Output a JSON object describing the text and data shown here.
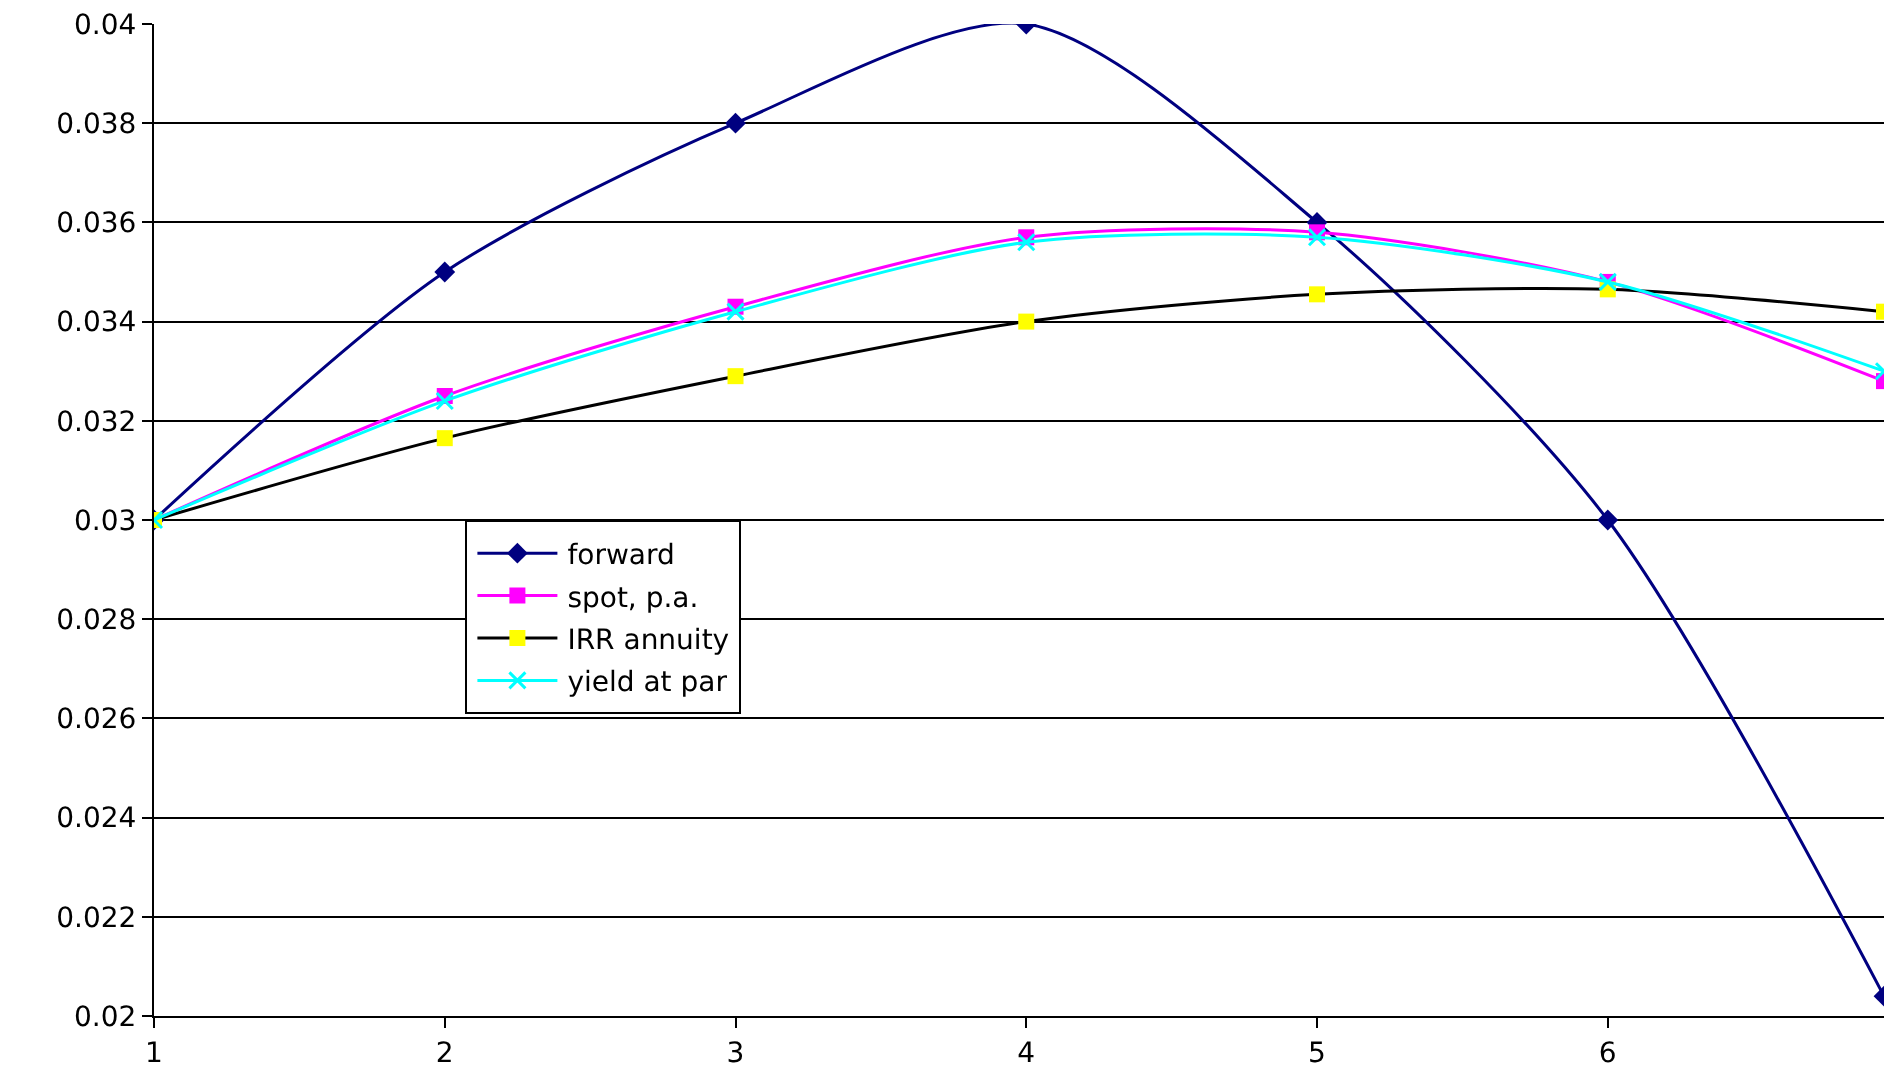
{
  "chart_data": {
    "type": "line",
    "x": [
      1,
      2,
      3,
      4,
      5,
      6,
      6.95
    ],
    "series": [
      {
        "name": "forward",
        "color": "#000080",
        "marker": "diamond",
        "values": [
          0.03,
          0.035,
          0.038,
          0.04,
          0.036,
          0.03,
          0.0204
        ]
      },
      {
        "name": "spot, p.a.",
        "color": "#ff00ff",
        "marker": "square",
        "values": [
          0.03,
          0.0325,
          0.0343,
          0.0357,
          0.0358,
          0.0348,
          0.0328
        ]
      },
      {
        "name": "IRR annuity",
        "color": "#000000",
        "colors": [
          "#ffff00",
          "#ffff00",
          "#ffff00",
          "#ffff00",
          "#ffff00",
          "#ffff00",
          "#ffff00"
        ],
        "marker": "square",
        "values": [
          0.03,
          0.03165,
          0.0329,
          0.034,
          0.03455,
          0.03465,
          0.0342
        ]
      },
      {
        "name": "yield at par",
        "color": "#00ffff",
        "marker": "cross",
        "values": [
          0.03,
          0.0324,
          0.0342,
          0.0356,
          0.0357,
          0.0348,
          0.033
        ]
      }
    ],
    "xlim": [
      1,
      6.95
    ],
    "xticks": [
      1,
      2,
      3,
      4,
      5,
      6
    ],
    "ylim": [
      0.02,
      0.04
    ],
    "yticks": [
      0.02,
      0.022,
      0.024,
      0.026,
      0.028,
      0.03,
      0.032,
      0.034,
      0.036,
      0.038,
      0.04
    ],
    "grid": "y",
    "legend": "left"
  }
}
